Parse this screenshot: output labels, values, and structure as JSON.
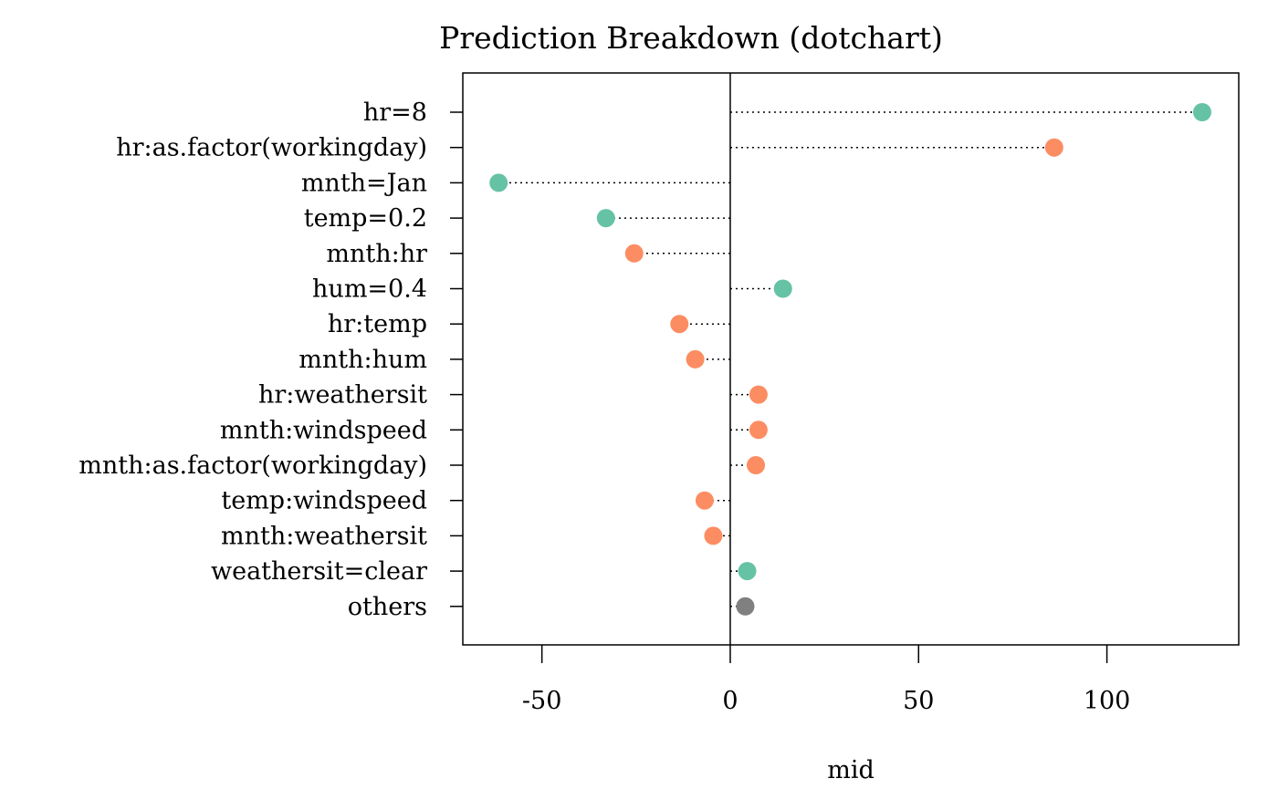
{
  "chart_data": {
    "type": "dotchart",
    "title": "Prediction Breakdown (dotchart)",
    "xlabel": "mid",
    "ylabel": "",
    "xlim": [
      -71,
      135
    ],
    "xticks": [
      -50,
      0,
      50,
      100
    ],
    "xtick_labels": [
      "-50",
      "0",
      "50",
      "100"
    ],
    "reference_line": 0,
    "grid": false,
    "legend": "none",
    "colors": {
      "main": "#66C2A5",
      "interaction": "#FC8D62",
      "others": "#808080"
    },
    "points": [
      {
        "label": "hr=8",
        "value": 125.3,
        "group": "main"
      },
      {
        "label": "hr:as.factor(workingday)",
        "value": 86.0,
        "group": "interaction"
      },
      {
        "label": "mnth=Jan",
        "value": -61.5,
        "group": "main"
      },
      {
        "label": "temp=0.2",
        "value": -33.0,
        "group": "main"
      },
      {
        "label": "mnth:hr",
        "value": -25.5,
        "group": "interaction"
      },
      {
        "label": "hum=0.4",
        "value": 14.0,
        "group": "main"
      },
      {
        "label": "hr:temp",
        "value": -13.5,
        "group": "interaction"
      },
      {
        "label": "mnth:hum",
        "value": -9.3,
        "group": "interaction"
      },
      {
        "label": "hr:weathersit",
        "value": 7.5,
        "group": "interaction"
      },
      {
        "label": "mnth:windspeed",
        "value": 7.5,
        "group": "interaction"
      },
      {
        "label": "mnth:as.factor(workingday)",
        "value": 6.8,
        "group": "interaction"
      },
      {
        "label": "temp:windspeed",
        "value": -6.8,
        "group": "interaction"
      },
      {
        "label": "mnth:weathersit",
        "value": -4.5,
        "group": "interaction"
      },
      {
        "label": "weathersit=clear",
        "value": 4.5,
        "group": "main"
      },
      {
        "label": "others",
        "value": 4.0,
        "group": "others"
      }
    ]
  }
}
